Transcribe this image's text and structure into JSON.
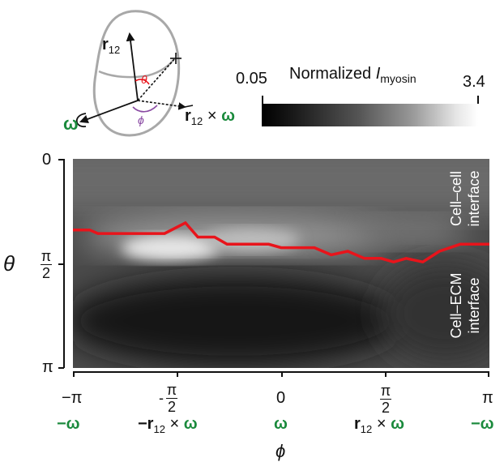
{
  "schematic": {
    "r12_label": "r",
    "r12_sub": "12",
    "cross_label_r": "r",
    "cross_label_sub": "12",
    "cross_label_times": "×",
    "cross_label_omega": "ω",
    "omega_label": "ω",
    "theta_symbol": "θ",
    "phi_symbol": "ϕ"
  },
  "colorbar": {
    "title_prefix": "Normalized ",
    "title_I": "I",
    "title_sub": "myosin",
    "min_label": "0.05",
    "max_label": "3.4",
    "min": 0.05,
    "max": 3.4
  },
  "heatmap": {
    "y_ticks": [
      {
        "label": "0"
      },
      {
        "label_num": "π",
        "label_den": "2"
      },
      {
        "label": "π"
      }
    ],
    "y_axis_label": "θ",
    "x_ticks": [
      {
        "label": "−π"
      },
      {
        "label_sign": "-",
        "label_num": "π",
        "label_den": "2"
      },
      {
        "label": "0"
      },
      {
        "label_num": "π",
        "label_den": "2"
      },
      {
        "label": "π"
      }
    ],
    "x_directions": [
      {
        "omega": "−ω"
      },
      {
        "prefix": "−r",
        "sub": "12",
        "times": "×",
        "omega": "ω"
      },
      {
        "omega": "ω"
      },
      {
        "prefix": "r",
        "sub": "12",
        "times": "×",
        "omega": "ω"
      },
      {
        "omega": "−ω"
      }
    ],
    "x_axis_label": "ϕ",
    "region_upper_line1": "Cell–cell",
    "region_upper_line2": "interface",
    "region_lower_line1": "Cell–ECM",
    "region_lower_line2": "interface",
    "boundary_color": "#e8141b",
    "boundary_theta_fraction": [
      [
        0.0,
        0.8
      ],
      [
        0.04,
        0.8
      ],
      [
        0.06,
        0.79
      ],
      [
        0.22,
        0.79
      ],
      [
        0.27,
        0.82
      ],
      [
        0.3,
        0.78
      ],
      [
        0.34,
        0.78
      ],
      [
        0.37,
        0.76
      ],
      [
        0.47,
        0.76
      ],
      [
        0.5,
        0.75
      ],
      [
        0.58,
        0.75
      ],
      [
        0.62,
        0.73
      ],
      [
        0.66,
        0.74
      ],
      [
        0.7,
        0.72
      ],
      [
        0.74,
        0.72
      ],
      [
        0.77,
        0.71
      ],
      [
        0.8,
        0.72
      ],
      [
        0.84,
        0.71
      ],
      [
        0.88,
        0.74
      ],
      [
        0.93,
        0.76
      ],
      [
        1.0,
        0.76
      ]
    ]
  }
}
